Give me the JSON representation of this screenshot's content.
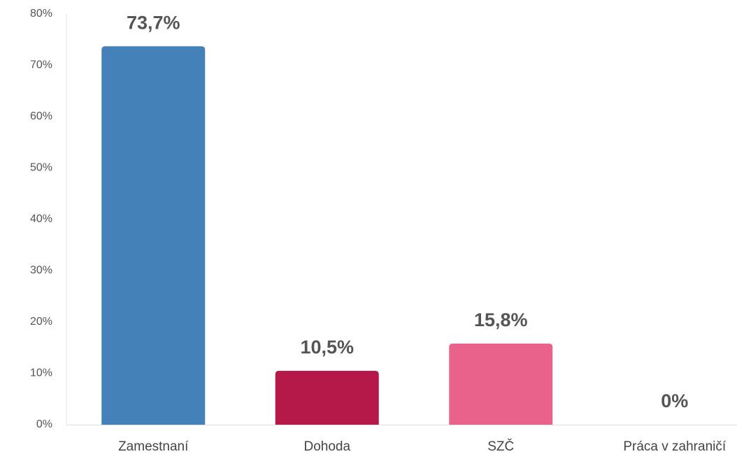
{
  "chart_data": {
    "type": "bar",
    "categories": [
      "Zamestnaní",
      "Dohoda",
      "SZČ",
      "Práca v zahraničí"
    ],
    "values": [
      73.7,
      10.5,
      15.8,
      0
    ],
    "value_labels": [
      "73,7%",
      "10,5%",
      "15,8%",
      "0%"
    ],
    "colors": [
      "#4581b9",
      "#b5194a",
      "#e9628b",
      "#9e9e9e"
    ],
    "ylim": [
      0,
      80
    ],
    "yticks": [
      {
        "value": 0,
        "label": "0%"
      },
      {
        "value": 10,
        "label": "10%"
      },
      {
        "value": 20,
        "label": "20%"
      },
      {
        "value": 30,
        "label": "30%"
      },
      {
        "value": 40,
        "label": "40%"
      },
      {
        "value": 50,
        "label": "50%"
      },
      {
        "value": 60,
        "label": "60%"
      },
      {
        "value": 70,
        "label": "70%"
      },
      {
        "value": 80,
        "label": "80%"
      }
    ],
    "grid": false
  }
}
